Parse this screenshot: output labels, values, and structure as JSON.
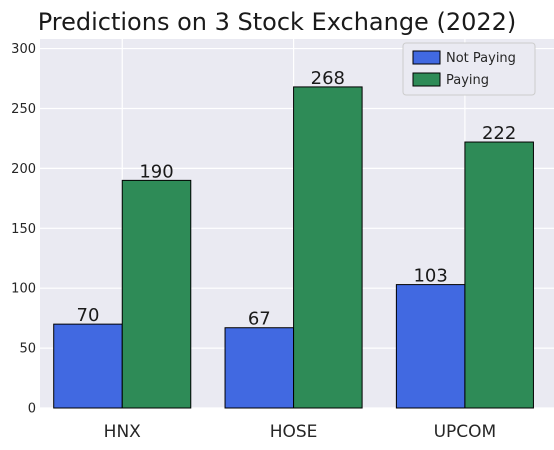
{
  "chart_data": {
    "type": "bar",
    "title": "Predictions on 3 Stock Exchange (2022)",
    "categories": [
      "HNX",
      "HOSE",
      "UPCOM"
    ],
    "series": [
      {
        "name": "Not Paying",
        "values": [
          70,
          67,
          103
        ],
        "color": "#4169e1"
      },
      {
        "name": "Paying",
        "values": [
          190,
          268,
          222
        ],
        "color": "#2e8b57"
      }
    ],
    "xlabel": "",
    "ylabel": "",
    "ylim": [
      0,
      308
    ],
    "yticks": [
      0,
      50,
      100,
      150,
      200,
      250,
      300
    ],
    "grid": true,
    "legend_position": "top-right",
    "background_color": "#eaeaf2"
  }
}
